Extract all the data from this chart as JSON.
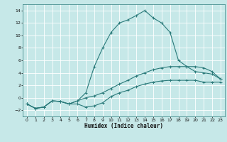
{
  "xlabel": "Humidex (Indice chaleur)",
  "background_color": "#c6e8e8",
  "grid_color": "#ffffff",
  "line_color": "#2a7a7a",
  "xlim": [
    -0.5,
    23.5
  ],
  "ylim": [
    -3,
    15
  ],
  "xticks": [
    0,
    1,
    2,
    3,
    4,
    5,
    6,
    7,
    8,
    9,
    10,
    11,
    12,
    13,
    14,
    15,
    16,
    17,
    18,
    19,
    20,
    21,
    22,
    23
  ],
  "yticks": [
    -2,
    0,
    2,
    4,
    6,
    8,
    10,
    12,
    14
  ],
  "series": [
    {
      "x": [
        0,
        1,
        2,
        3,
        4,
        5,
        6,
        7,
        8,
        9,
        10,
        11,
        12,
        13,
        14,
        15,
        16,
        17,
        18,
        19,
        20,
        21,
        22,
        23
      ],
      "y": [
        -1.0,
        -1.7,
        -1.5,
        -0.5,
        -0.6,
        -1.0,
        -1.0,
        -1.5,
        -1.3,
        -0.8,
        0.2,
        0.8,
        1.2,
        1.8,
        2.2,
        2.5,
        2.7,
        2.8,
        2.8,
        2.8,
        2.8,
        2.5,
        2.5,
        2.5
      ]
    },
    {
      "x": [
        0,
        1,
        2,
        3,
        4,
        5,
        6,
        7,
        8,
        9,
        10,
        11,
        12,
        13,
        14,
        15,
        16,
        17,
        18,
        19,
        20,
        21,
        22,
        23
      ],
      "y": [
        -1.0,
        -1.7,
        -1.5,
        -0.5,
        -0.6,
        -1.0,
        -0.5,
        0.0,
        0.3,
        0.8,
        1.5,
        2.2,
        2.8,
        3.5,
        4.0,
        4.5,
        4.8,
        5.0,
        5.0,
        5.0,
        5.0,
        4.8,
        4.2,
        3.0
      ]
    },
    {
      "x": [
        0,
        1,
        2,
        3,
        4,
        5,
        6,
        7,
        8,
        9,
        10,
        11,
        12,
        13,
        14,
        15,
        16,
        17,
        18,
        19,
        20,
        21,
        22,
        23
      ],
      "y": [
        -1.0,
        -1.7,
        -1.5,
        -0.5,
        -0.6,
        -1.0,
        -0.5,
        0.8,
        5.0,
        8.0,
        10.5,
        12.0,
        12.5,
        13.2,
        14.0,
        12.8,
        12.0,
        10.5,
        6.0,
        5.0,
        4.2,
        4.0,
        3.8,
        3.0
      ]
    }
  ]
}
